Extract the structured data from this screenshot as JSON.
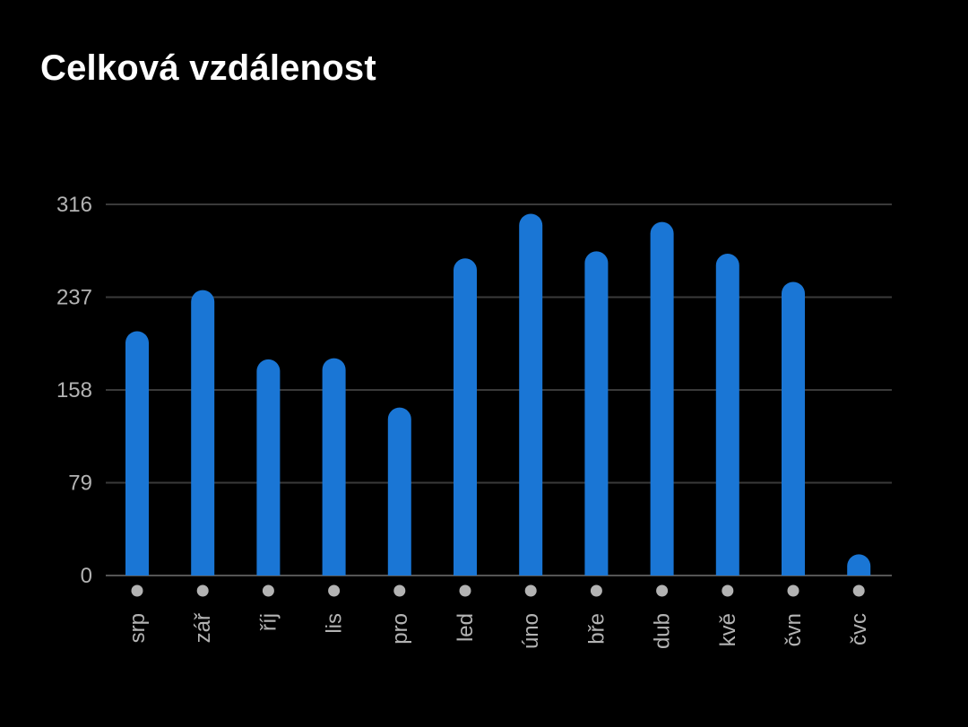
{
  "title": "Celková vzdálenost",
  "colors": {
    "background": "#000000",
    "bar": "#1a76d5",
    "grid": "#3a3a3a",
    "axis": "#555555",
    "label": "#b3b3b3",
    "dot": "#b3b3b3",
    "title": "#ffffff"
  },
  "chart_data": {
    "type": "bar",
    "title": "Celková vzdálenost",
    "xlabel": "",
    "ylabel": "",
    "categories": [
      "srp",
      "zář",
      "říj",
      "lis",
      "pro",
      "led",
      "úno",
      "bře",
      "dub",
      "kvě",
      "čvn",
      "čvc"
    ],
    "values": [
      208,
      243,
      184,
      185,
      143,
      270,
      308,
      276,
      301,
      274,
      250,
      18
    ],
    "yticks": [
      0,
      79,
      158,
      237,
      316
    ],
    "ylim": [
      0,
      316
    ],
    "grid": true,
    "legend": "none"
  }
}
